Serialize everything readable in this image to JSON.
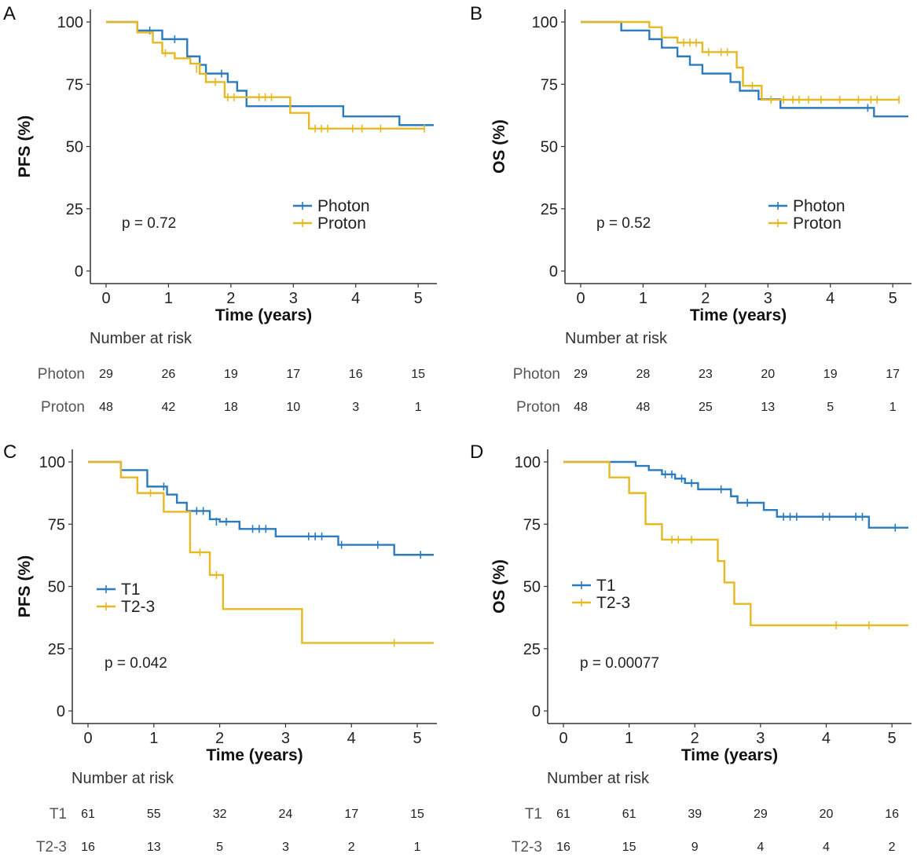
{
  "colors": {
    "series1": "#2b7bbf",
    "series2": "#e8b820",
    "axis": "#333333"
  },
  "chart_data": [
    {
      "id": "A",
      "type": "line",
      "subtype": "kaplan-meier",
      "ylabel": "PFS (%)",
      "xlabel": "Time (years)",
      "xlim": [
        0,
        5.25
      ],
      "ylim": [
        0,
        100
      ],
      "xticks": [
        "0",
        "1",
        "2",
        "3",
        "4",
        "5"
      ],
      "yticks": [
        "0",
        "25",
        "50",
        "75",
        "100"
      ],
      "pvalue": "p = 0.72",
      "legend_position": "center-right",
      "series": [
        {
          "name": "Photon",
          "color": "#2b7bbf",
          "steps": [
            [
              0,
              100
            ],
            [
              0.5,
              96.6
            ],
            [
              0.9,
              93.1
            ],
            [
              1.3,
              86.2
            ],
            [
              1.5,
              82.8
            ],
            [
              1.6,
              79.3
            ],
            [
              1.95,
              75.9
            ],
            [
              2.1,
              72.4
            ],
            [
              2.25,
              66.2
            ],
            [
              3.8,
              62.1
            ],
            [
              4.7,
              58.6
            ],
            [
              5.25,
              58.6
            ]
          ],
          "censors": [
            [
              0.7,
              96.6
            ],
            [
              1.1,
              93.1
            ],
            [
              1.85,
              79.3
            ]
          ]
        },
        {
          "name": "Proton",
          "color": "#e8b820",
          "steps": [
            [
              0,
              100
            ],
            [
              0.5,
              95.8
            ],
            [
              0.75,
              91.7
            ],
            [
              0.9,
              87.5
            ],
            [
              1.1,
              85.4
            ],
            [
              1.35,
              83.3
            ],
            [
              1.5,
              79.2
            ],
            [
              1.6,
              75.9
            ],
            [
              1.9,
              69.8
            ],
            [
              2.95,
              63.5
            ],
            [
              3.25,
              57.2
            ],
            [
              5.1,
              57.2
            ]
          ],
          "censors": [
            [
              0.95,
              87.5
            ],
            [
              1.45,
              81.2
            ],
            [
              1.75,
              75.9
            ],
            [
              1.95,
              69.8
            ],
            [
              2.05,
              69.8
            ],
            [
              2.45,
              69.8
            ],
            [
              2.55,
              69.8
            ],
            [
              2.65,
              69.8
            ],
            [
              3.35,
              57.2
            ],
            [
              3.45,
              57.2
            ],
            [
              3.55,
              57.2
            ],
            [
              3.95,
              57.2
            ],
            [
              4.1,
              57.2
            ],
            [
              4.4,
              57.2
            ],
            [
              5.1,
              57.2
            ]
          ]
        }
      ],
      "risk_table": {
        "title": "Number at risk",
        "times": [
          0,
          1,
          2,
          3,
          4,
          5
        ],
        "rows": [
          {
            "label": "Photon",
            "values": [
              "29",
              "26",
              "19",
              "17",
              "16",
              "15"
            ]
          },
          {
            "label": "Proton",
            "values": [
              "48",
              "42",
              "18",
              "10",
              "3",
              "1"
            ]
          }
        ]
      }
    },
    {
      "id": "B",
      "type": "line",
      "subtype": "kaplan-meier",
      "ylabel": "OS (%)",
      "xlabel": "Time (years)",
      "xlim": [
        0,
        5.25
      ],
      "ylim": [
        0,
        100
      ],
      "xticks": [
        "0",
        "1",
        "2",
        "3",
        "4",
        "5"
      ],
      "yticks": [
        "0",
        "25",
        "50",
        "75",
        "100"
      ],
      "pvalue": "p = 0.52",
      "legend_position": "center-right",
      "series": [
        {
          "name": "Photon",
          "color": "#2b7bbf",
          "steps": [
            [
              0,
              100
            ],
            [
              0.65,
              96.6
            ],
            [
              1.1,
              93.1
            ],
            [
              1.3,
              89.7
            ],
            [
              1.55,
              86.2
            ],
            [
              1.75,
              82.8
            ],
            [
              1.95,
              79.3
            ],
            [
              2.4,
              75.9
            ],
            [
              2.55,
              72.4
            ],
            [
              2.85,
              69.0
            ],
            [
              3.2,
              65.5
            ],
            [
              4.7,
              62.1
            ],
            [
              5.25,
              62.1
            ]
          ],
          "censors": [
            [
              4.6,
              65.5
            ]
          ]
        },
        {
          "name": "Proton",
          "color": "#e8b820",
          "steps": [
            [
              0,
              100
            ],
            [
              1.1,
              97.9
            ],
            [
              1.3,
              93.8
            ],
            [
              1.55,
              91.7
            ],
            [
              1.95,
              87.9
            ],
            [
              2.5,
              81.7
            ],
            [
              2.6,
              74.4
            ],
            [
              2.9,
              68.8
            ],
            [
              5.1,
              68.8
            ]
          ],
          "censors": [
            [
              1.65,
              91.7
            ],
            [
              1.75,
              91.7
            ],
            [
              1.85,
              91.7
            ],
            [
              2.05,
              87.9
            ],
            [
              2.25,
              87.9
            ],
            [
              2.35,
              87.9
            ],
            [
              2.75,
              74.4
            ],
            [
              3.05,
              68.8
            ],
            [
              3.25,
              68.8
            ],
            [
              3.4,
              68.8
            ],
            [
              3.5,
              68.8
            ],
            [
              3.65,
              68.8
            ],
            [
              3.85,
              68.8
            ],
            [
              4.15,
              68.8
            ],
            [
              4.45,
              68.8
            ],
            [
              4.65,
              68.8
            ],
            [
              4.75,
              68.8
            ],
            [
              5.1,
              68.8
            ]
          ]
        }
      ],
      "risk_table": {
        "title": "Number at risk",
        "times": [
          0,
          1,
          2,
          3,
          4,
          5
        ],
        "rows": [
          {
            "label": "Photon",
            "values": [
              "29",
              "28",
              "23",
              "20",
              "19",
              "17"
            ]
          },
          {
            "label": "Proton",
            "values": [
              "48",
              "48",
              "25",
              "13",
              "5",
              "1"
            ]
          }
        ]
      }
    },
    {
      "id": "C",
      "type": "line",
      "subtype": "kaplan-meier",
      "ylabel": "PFS (%)",
      "xlabel": "Time (years)",
      "xlim": [
        0,
        5.25
      ],
      "ylim": [
        0,
        100
      ],
      "xticks": [
        "0",
        "1",
        "2",
        "3",
        "4",
        "5"
      ],
      "yticks": [
        "0",
        "25",
        "50",
        "75",
        "100"
      ],
      "pvalue": "p = 0.042",
      "legend_position": "center-left",
      "series": [
        {
          "name": "T1",
          "color": "#2b7bbf",
          "steps": [
            [
              0,
              100
            ],
            [
              0.5,
              96.7
            ],
            [
              0.9,
              90.1
            ],
            [
              1.2,
              86.9
            ],
            [
              1.35,
              83.6
            ],
            [
              1.5,
              80.3
            ],
            [
              1.85,
              77.0
            ],
            [
              2.0,
              76.0
            ],
            [
              2.3,
              73.1
            ],
            [
              2.85,
              70.1
            ],
            [
              3.8,
              66.7
            ],
            [
              4.65,
              62.7
            ],
            [
              5.25,
              62.7
            ]
          ],
          "censors": [
            [
              1.15,
              90.1
            ],
            [
              1.65,
              80.3
            ],
            [
              1.75,
              80.3
            ],
            [
              1.95,
              76.0
            ],
            [
              2.1,
              76.0
            ],
            [
              2.5,
              73.1
            ],
            [
              2.6,
              73.1
            ],
            [
              2.7,
              73.1
            ],
            [
              3.35,
              70.1
            ],
            [
              3.45,
              70.1
            ],
            [
              3.55,
              70.1
            ],
            [
              3.85,
              66.7
            ],
            [
              4.4,
              66.7
            ],
            [
              5.05,
              62.7
            ]
          ]
        },
        {
          "name": "T2-3",
          "color": "#e8b820",
          "steps": [
            [
              0,
              100
            ],
            [
              0.5,
              93.8
            ],
            [
              0.75,
              87.5
            ],
            [
              1.15,
              80.0
            ],
            [
              1.55,
              63.7
            ],
            [
              1.85,
              54.6
            ],
            [
              2.05,
              40.9
            ],
            [
              3.25,
              27.3
            ],
            [
              5.25,
              27.3
            ]
          ],
          "censors": [
            [
              0.95,
              87.5
            ],
            [
              1.7,
              63.7
            ],
            [
              1.95,
              54.6
            ],
            [
              4.65,
              27.3
            ]
          ]
        }
      ],
      "risk_table": {
        "title": "Number at risk",
        "times": [
          0,
          1,
          2,
          3,
          4,
          5
        ],
        "rows": [
          {
            "label": "T1",
            "values": [
              "61",
              "55",
              "32",
              "24",
              "17",
              "15"
            ]
          },
          {
            "label": "T2-3",
            "values": [
              "16",
              "13",
              "5",
              "3",
              "2",
              "1"
            ]
          }
        ]
      }
    },
    {
      "id": "D",
      "type": "line",
      "subtype": "kaplan-meier",
      "ylabel": "OS (%)",
      "xlabel": "Time (years)",
      "xlim": [
        0,
        5.25
      ],
      "ylim": [
        0,
        100
      ],
      "xticks": [
        "0",
        "1",
        "2",
        "3",
        "4",
        "5"
      ],
      "yticks": [
        "0",
        "25",
        "50",
        "75",
        "100"
      ],
      "pvalue": "p = 0.00077",
      "legend_position": "center-left",
      "series": [
        {
          "name": "T1",
          "color": "#2b7bbf",
          "steps": [
            [
              0,
              100
            ],
            [
              1.1,
              98.4
            ],
            [
              1.3,
              96.7
            ],
            [
              1.5,
              95.0
            ],
            [
              1.7,
              93.3
            ],
            [
              1.85,
              91.5
            ],
            [
              2.05,
              89.0
            ],
            [
              2.55,
              86.2
            ],
            [
              2.65,
              83.6
            ],
            [
              3.05,
              80.7
            ],
            [
              3.25,
              78.0
            ],
            [
              4.65,
              73.6
            ],
            [
              5.25,
              73.6
            ]
          ],
          "censors": [
            [
              1.55,
              95.0
            ],
            [
              1.65,
              95.0
            ],
            [
              1.8,
              93.3
            ],
            [
              1.95,
              91.5
            ],
            [
              2.4,
              89.0
            ],
            [
              2.8,
              83.6
            ],
            [
              3.35,
              78.0
            ],
            [
              3.45,
              78.0
            ],
            [
              3.55,
              78.0
            ],
            [
              3.95,
              78.0
            ],
            [
              4.05,
              78.0
            ],
            [
              4.45,
              78.0
            ],
            [
              4.55,
              78.0
            ],
            [
              5.05,
              73.6
            ]
          ]
        },
        {
          "name": "T2-3",
          "color": "#e8b820",
          "steps": [
            [
              0,
              100
            ],
            [
              0.7,
              93.8
            ],
            [
              1.0,
              87.5
            ],
            [
              1.25,
              75.0
            ],
            [
              1.5,
              68.8
            ],
            [
              2.35,
              60.2
            ],
            [
              2.45,
              51.6
            ],
            [
              2.6,
              43.0
            ],
            [
              2.85,
              34.4
            ],
            [
              5.25,
              34.4
            ]
          ],
          "censors": [
            [
              1.65,
              68.8
            ],
            [
              1.75,
              68.8
            ],
            [
              1.95,
              68.8
            ],
            [
              4.15,
              34.4
            ],
            [
              4.65,
              34.4
            ]
          ]
        }
      ],
      "risk_table": {
        "title": "Number at risk",
        "times": [
          0,
          1,
          2,
          3,
          4,
          5
        ],
        "rows": [
          {
            "label": "T1",
            "values": [
              "61",
              "61",
              "39",
              "29",
              "20",
              "16"
            ]
          },
          {
            "label": "T2-3",
            "values": [
              "16",
              "15",
              "9",
              "4",
              "4",
              "2"
            ]
          }
        ]
      }
    }
  ]
}
